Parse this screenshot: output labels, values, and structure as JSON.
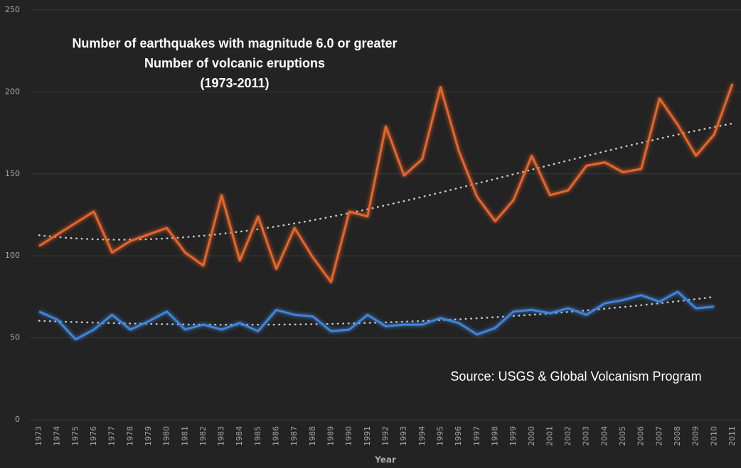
{
  "chart_data": {
    "type": "line",
    "title_lines": [
      "Number of earthquakes  with magnitude 6.0 or greater",
      "Number of volcanic eruptions",
      "(1973-2011)"
    ],
    "annotation": "Source: USGS & Global Volcanism Program",
    "x_label": "Year",
    "categories": [
      "1973",
      "1974",
      "1975",
      "1976",
      "1977",
      "1978",
      "1979",
      "1980",
      "1981",
      "1982",
      "1983",
      "1984",
      "1985",
      "1986",
      "1987",
      "1988",
      "1989",
      "1990",
      "1991",
      "1992",
      "1993",
      "1994",
      "1995",
      "1996",
      "1997",
      "1998",
      "1999",
      "2000",
      "2001",
      "2002",
      "2003",
      "2004",
      "2005",
      "2006",
      "2007",
      "2008",
      "2009",
      "2010",
      "2011"
    ],
    "series": [
      {
        "color": "#e8652b",
        "values": [
          106,
          113,
          120,
          127,
          102,
          109,
          113,
          117,
          102,
          94,
          137,
          97,
          124,
          92,
          117,
          99,
          84,
          127,
          124,
          179,
          149,
          159,
          203,
          164,
          136,
          121,
          134,
          161,
          137,
          140,
          155,
          157,
          151,
          153,
          196,
          180,
          161,
          174,
          205
        ]
      },
      {
        "color": "#3f84d8",
        "values": [
          66,
          61,
          49,
          55,
          64,
          55,
          60,
          66,
          55,
          58,
          55,
          59,
          54,
          67,
          64,
          63,
          54,
          55,
          64,
          57,
          58,
          58,
          62,
          59,
          52,
          56,
          66,
          67,
          65,
          68,
          64,
          71,
          73,
          76,
          72,
          78,
          68,
          69,
          null
        ]
      }
    ],
    "ylim": [
      0,
      250
    ],
    "yticks": [
      0,
      50,
      100,
      150,
      200,
      250
    ],
    "grid": true,
    "trendline": true
  }
}
